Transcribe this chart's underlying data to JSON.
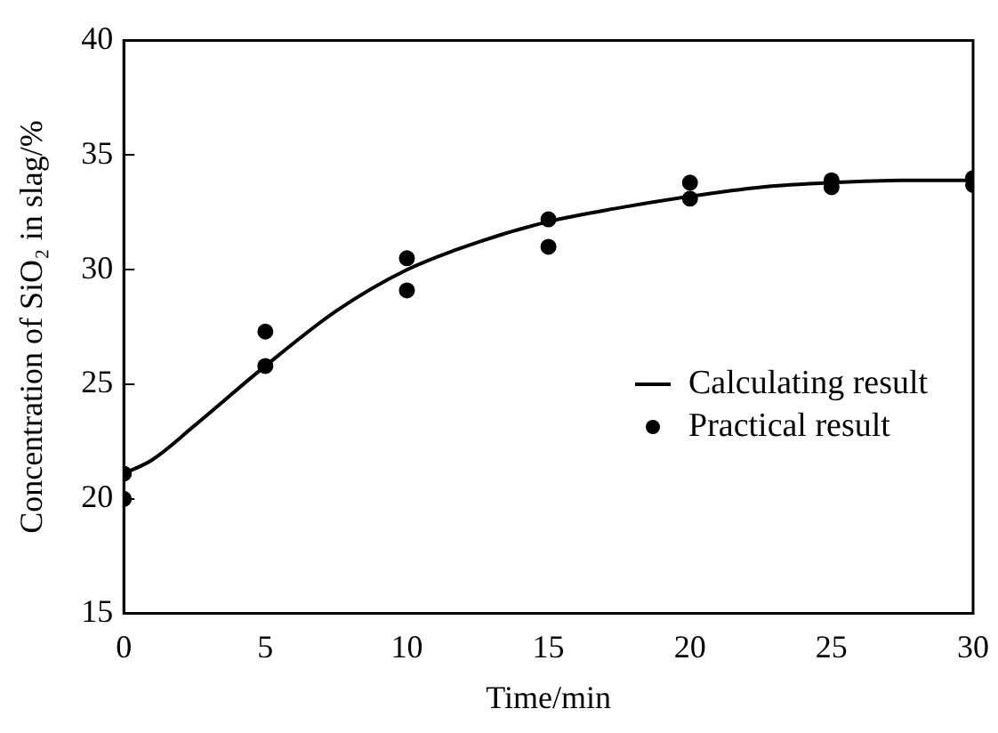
{
  "chart_data": {
    "type": "line",
    "xlabel": "Time/min",
    "ylabel": "Concentration of SiO₂ in slag/%",
    "xlim": [
      0,
      30
    ],
    "xticks": [
      0,
      5,
      10,
      15,
      20,
      25,
      30
    ],
    "ylim": [
      15,
      40
    ],
    "yticks": [
      15,
      20,
      25,
      30,
      35,
      40
    ],
    "grid": false,
    "legend": "right",
    "series": [
      {
        "name": "Calculating result",
        "color": "#000000",
        "marker": "none",
        "line_style": "solid",
        "x": [
          0,
          1,
          2.5,
          5,
          7.5,
          10,
          12.5,
          15,
          17.5,
          20,
          22.5,
          25,
          27.5,
          30
        ],
        "values": [
          21.1,
          21.7,
          23.2,
          25.8,
          28.2,
          30.0,
          31.2,
          32.1,
          32.7,
          33.2,
          33.6,
          33.8,
          33.9,
          33.9
        ]
      },
      {
        "name": "Practical result",
        "type": "scatter",
        "color": "#000000",
        "marker": "circle",
        "x": [
          0,
          0,
          5,
          5,
          10,
          10,
          15,
          15,
          20,
          20,
          25,
          25,
          30,
          30
        ],
        "values": [
          21.1,
          20.0,
          27.3,
          25.8,
          30.5,
          29.1,
          32.2,
          31.0,
          33.8,
          33.1,
          33.9,
          33.6,
          34.0,
          33.7
        ]
      }
    ]
  }
}
